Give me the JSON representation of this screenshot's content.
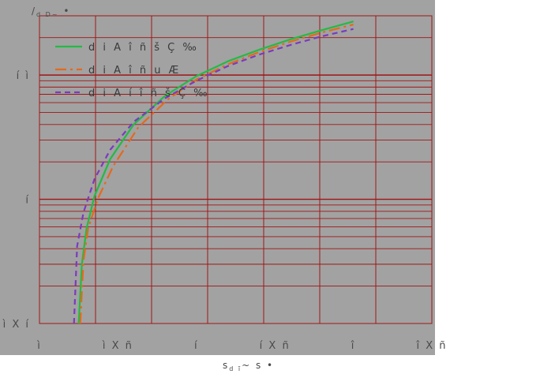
{
  "chart_data": {
    "type": "line",
    "ylabel": {
      "main": "/",
      "sub": "d D~",
      "tail": " •"
    },
    "xlabel": {
      "main": "s",
      "sub": "d  ĩ",
      "tail": "~ s •"
    },
    "xlim": [
      0,
      2.5
    ],
    "ylim": [
      0.1,
      30
    ],
    "yscale": "log",
    "x_ticks": [
      {
        "value": 0,
        "label": "ì"
      },
      {
        "value": 0.5,
        "label": "ì X ñ"
      },
      {
        "value": 1.0,
        "label": "í"
      },
      {
        "value": 1.5,
        "label": "í X ñ"
      },
      {
        "value": 2.0,
        "label": "î"
      },
      {
        "value": 2.5,
        "label": "î X ñ"
      }
    ],
    "x_ticks_visible": [
      "ì",
      "ì X ñ",
      "í",
      "í X"
    ],
    "y_ticks": [
      {
        "value": 0.1,
        "label": "ì X í"
      },
      {
        "value": 1,
        "label": "í"
      },
      {
        "value": 10,
        "label": "í ì"
      }
    ],
    "grid": true,
    "legend_position": "top-left",
    "series": [
      {
        "name": "d i A î ñ š Ç ‰",
        "color": "#22bb44",
        "style": "solid",
        "x": [
          0.25,
          0.27,
          0.3,
          0.35,
          0.45,
          0.6,
          0.8,
          1.0,
          1.2,
          1.4,
          1.6,
          1.8,
          2.0
        ],
        "y": [
          0.1,
          0.3,
          0.58,
          1.06,
          2.1,
          4.0,
          6.8,
          9.8,
          12.9,
          16.0,
          19.4,
          23.0,
          27.0
        ]
      },
      {
        "name": "d i A î ñ u  Æ",
        "color": "#e36a1d",
        "style": "dashdot",
        "x": [
          0.26,
          0.28,
          0.31,
          0.37,
          0.47,
          0.63,
          0.82,
          1.0,
          1.2,
          1.4,
          1.6,
          1.8,
          2.0
        ],
        "y": [
          0.1,
          0.32,
          0.58,
          1.0,
          1.85,
          3.8,
          6.4,
          9.2,
          12.2,
          15.3,
          18.6,
          22.0,
          25.5
        ]
      },
      {
        "name": "d i A í î ñ š Ç ‰",
        "color": "#7a3bbf",
        "style": "dashed",
        "x": [
          0.22,
          0.24,
          0.28,
          0.35,
          0.45,
          0.6,
          0.8,
          1.0,
          1.2,
          1.4,
          1.6,
          1.8,
          2.0
        ],
        "y": [
          0.1,
          0.42,
          0.78,
          1.45,
          2.5,
          4.2,
          6.5,
          9.0,
          11.8,
          14.6,
          17.5,
          20.5,
          23.5
        ]
      }
    ]
  }
}
